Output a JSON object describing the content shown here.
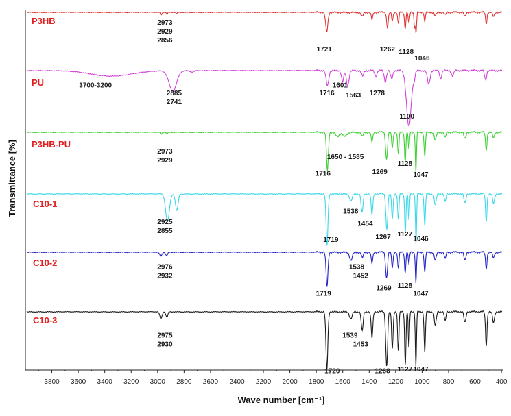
{
  "chart_data": {
    "type": "line",
    "xlabel": "Wave number [cm⁻¹]",
    "ylabel": "Transmittance [%]",
    "xlim": [
      4000,
      390
    ],
    "x_reversed": true,
    "x_ticks": [
      "3800",
      "3600",
      "3400",
      "3200",
      "3000",
      "2800",
      "2600",
      "2400",
      "2200",
      "2000",
      "1800",
      "1600",
      "1400",
      "1200",
      "1000",
      "800",
      "600",
      "400"
    ],
    "grid": false,
    "series": [
      {
        "name": "P3HB",
        "color": "#e03030",
        "peak_labels": [
          {
            "text": "2973",
            "x": 2945,
            "row": 0
          },
          {
            "text": "2929",
            "x": 2945,
            "row": 1
          },
          {
            "text": "2856",
            "x": 2945,
            "row": 2
          },
          {
            "text": "1721",
            "x": 1740,
            "row": 3
          },
          {
            "text": "1262",
            "x": 1262,
            "row": 3
          },
          {
            "text": "1128",
            "x": 1120,
            "row": 3.3
          },
          {
            "text": "1046",
            "x": 1000,
            "row": 4
          }
        ]
      },
      {
        "name": "PU",
        "color": "#d040d8",
        "peak_labels": [
          {
            "text": "3700-3200",
            "x": 3470,
            "row": 0.5
          },
          {
            "text": "2885",
            "x": 2875,
            "row": 1.4
          },
          {
            "text": "2741",
            "x": 2875,
            "row": 2.4
          },
          {
            "text": "1716",
            "x": 1720,
            "row": 1.4
          },
          {
            "text": "1601",
            "x": 1620,
            "row": 0.5
          },
          {
            "text": "1563",
            "x": 1520,
            "row": 1.6
          },
          {
            "text": "1278",
            "x": 1340,
            "row": 1.4
          },
          {
            "text": "1100",
            "x": 1115,
            "row": 4
          }
        ]
      },
      {
        "name": "P3HB-PU",
        "color": "#3ad030",
        "peak_labels": [
          {
            "text": "2973",
            "x": 2945,
            "row": 1
          },
          {
            "text": "2929",
            "x": 2945,
            "row": 2
          },
          {
            "text": "1650 - 1585",
            "x": 1580,
            "row": 1.6
          },
          {
            "text": "1716",
            "x": 1750,
            "row": 3.5
          },
          {
            "text": "1269",
            "x": 1320,
            "row": 3.3
          },
          {
            "text": "1128",
            "x": 1130,
            "row": 2.4
          },
          {
            "text": "1047",
            "x": 1010,
            "row": 3.6
          }
        ]
      },
      {
        "name": "C10-1",
        "color": "#3ad8e8",
        "peak_labels": [
          {
            "text": "2925",
            "x": 2945,
            "row": 2
          },
          {
            "text": "2855",
            "x": 2945,
            "row": 3
          },
          {
            "text": "1538",
            "x": 1540,
            "row": 0.8
          },
          {
            "text": "1454",
            "x": 1430,
            "row": 2.2
          },
          {
            "text": "1719",
            "x": 1690,
            "row": 4
          },
          {
            "text": "1267",
            "x": 1295,
            "row": 3.7
          },
          {
            "text": "1127",
            "x": 1130,
            "row": 3.4
          },
          {
            "text": "1046",
            "x": 1010,
            "row": 3.9
          }
        ]
      },
      {
        "name": "C10-2",
        "color": "#2020c8",
        "peak_labels": [
          {
            "text": "2976",
            "x": 2945,
            "row": 0.5
          },
          {
            "text": "2932",
            "x": 2945,
            "row": 1.5
          },
          {
            "text": "1538",
            "x": 1495,
            "row": 0.5
          },
          {
            "text": "1452",
            "x": 1465,
            "row": 1.5
          },
          {
            "text": "1719",
            "x": 1745,
            "row": 3.5
          },
          {
            "text": "1269",
            "x": 1290,
            "row": 2.9
          },
          {
            "text": "1128",
            "x": 1130,
            "row": 2.6
          },
          {
            "text": "1047",
            "x": 1010,
            "row": 3.5
          }
        ]
      },
      {
        "name": "C10-3",
        "color": "#1a1a1a",
        "peak_labels": [
          {
            "text": "2975",
            "x": 2945,
            "row": 1.5
          },
          {
            "text": "2930",
            "x": 2945,
            "row": 2.5
          },
          {
            "text": "1539",
            "x": 1545,
            "row": 1.5
          },
          {
            "text": "1453",
            "x": 1465,
            "row": 2.5
          },
          {
            "text": "1720",
            "x": 1680,
            "row": 5.5
          },
          {
            "text": "1268",
            "x": 1300,
            "row": 5.5
          },
          {
            "text": "1127",
            "x": 1130,
            "row": 5.3
          },
          {
            "text": "1047",
            "x": 1010,
            "row": 5.3
          }
        ]
      }
    ]
  }
}
